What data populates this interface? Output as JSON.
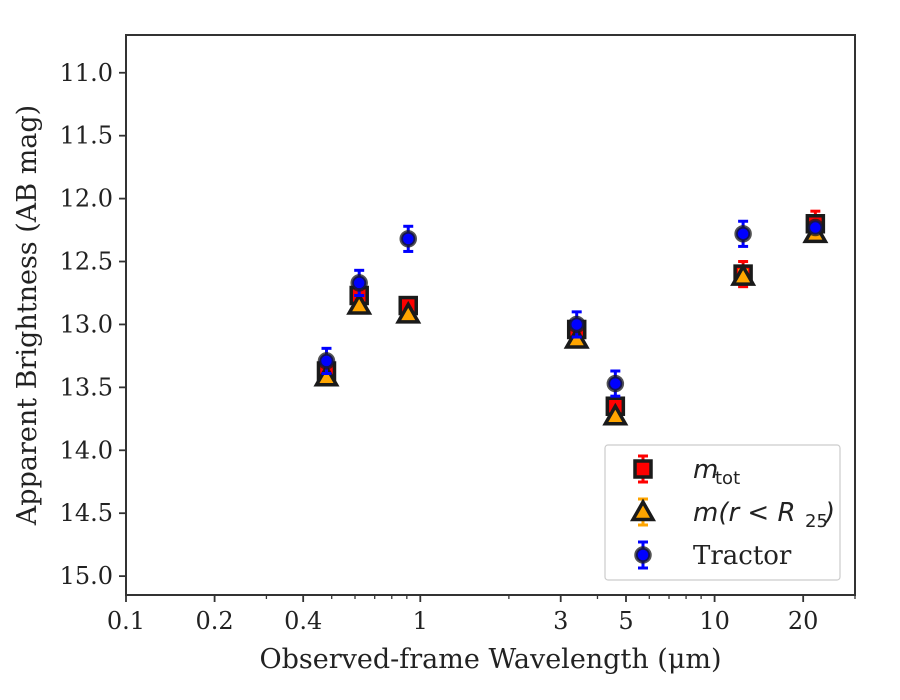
{
  "chart_data": {
    "type": "scatter",
    "xlabel": "Observed-frame Wavelength (μm)",
    "ylabel": "Apparent Brightness (AB mag)",
    "x_scale": "log",
    "xlim": [
      0.1,
      30
    ],
    "ylim": [
      15.15,
      10.7
    ],
    "y_inverted": true,
    "grid": false,
    "legend_position": "bottom-right",
    "x_ticks": [
      0.1,
      0.2,
      0.4,
      1,
      3,
      5,
      10,
      20
    ],
    "x_tick_labels": [
      "0.1",
      "0.2",
      "0.4",
      "1",
      "3",
      "5",
      "10",
      "20"
    ],
    "y_ticks": [
      11.0,
      11.5,
      12.0,
      12.5,
      13.0,
      13.5,
      14.0,
      14.5,
      15.0
    ],
    "y_tick_labels": [
      "11.0",
      "11.5",
      "12.0",
      "12.5",
      "13.0",
      "13.5",
      "14.0",
      "14.5",
      "15.0"
    ],
    "series": [
      {
        "name": "m_tot",
        "legend_label": "mtot",
        "marker": "square",
        "color": "#ff0000",
        "points": [
          {
            "x": 0.48,
            "y": 13.37,
            "yerr": 0.06
          },
          {
            "x": 0.62,
            "y": 12.77,
            "yerr": 0.06
          },
          {
            "x": 0.91,
            "y": 12.85,
            "yerr": 0.06
          },
          {
            "x": 3.4,
            "y": 13.04,
            "yerr": 0.06
          },
          {
            "x": 4.6,
            "y": 13.65,
            "yerr": 0.06
          },
          {
            "x": 12.5,
            "y": 12.6,
            "yerr": 0.1
          },
          {
            "x": 22,
            "y": 12.2,
            "yerr": 0.1
          }
        ]
      },
      {
        "name": "m(r<R25)",
        "legend_label": "m(r<R25)",
        "marker": "triangle",
        "color": "#ffa500",
        "points": [
          {
            "x": 0.48,
            "y": 13.42,
            "yerr": 0.03
          },
          {
            "x": 0.62,
            "y": 12.85,
            "yerr": 0.03
          },
          {
            "x": 0.91,
            "y": 12.92,
            "yerr": 0.03
          },
          {
            "x": 3.4,
            "y": 13.12,
            "yerr": 0.03
          },
          {
            "x": 4.6,
            "y": 13.73,
            "yerr": 0.03
          },
          {
            "x": 12.5,
            "y": 12.62,
            "yerr": 0.05
          },
          {
            "x": 22,
            "y": 12.28,
            "yerr": 0.05
          }
        ]
      },
      {
        "name": "Tractor",
        "legend_label": "Tractor",
        "marker": "circle",
        "color": "#0000ff",
        "points": [
          {
            "x": 0.48,
            "y": 13.29,
            "yerr": 0.1
          },
          {
            "x": 0.62,
            "y": 12.67,
            "yerr": 0.1
          },
          {
            "x": 0.91,
            "y": 12.32,
            "yerr": 0.1
          },
          {
            "x": 3.4,
            "y": 13.0,
            "yerr": 0.1
          },
          {
            "x": 4.6,
            "y": 13.47,
            "yerr": 0.1
          },
          {
            "x": 12.5,
            "y": 12.28,
            "yerr": 0.1
          },
          {
            "x": 22,
            "y": 12.23,
            "yerr": 0.03
          }
        ]
      }
    ]
  }
}
